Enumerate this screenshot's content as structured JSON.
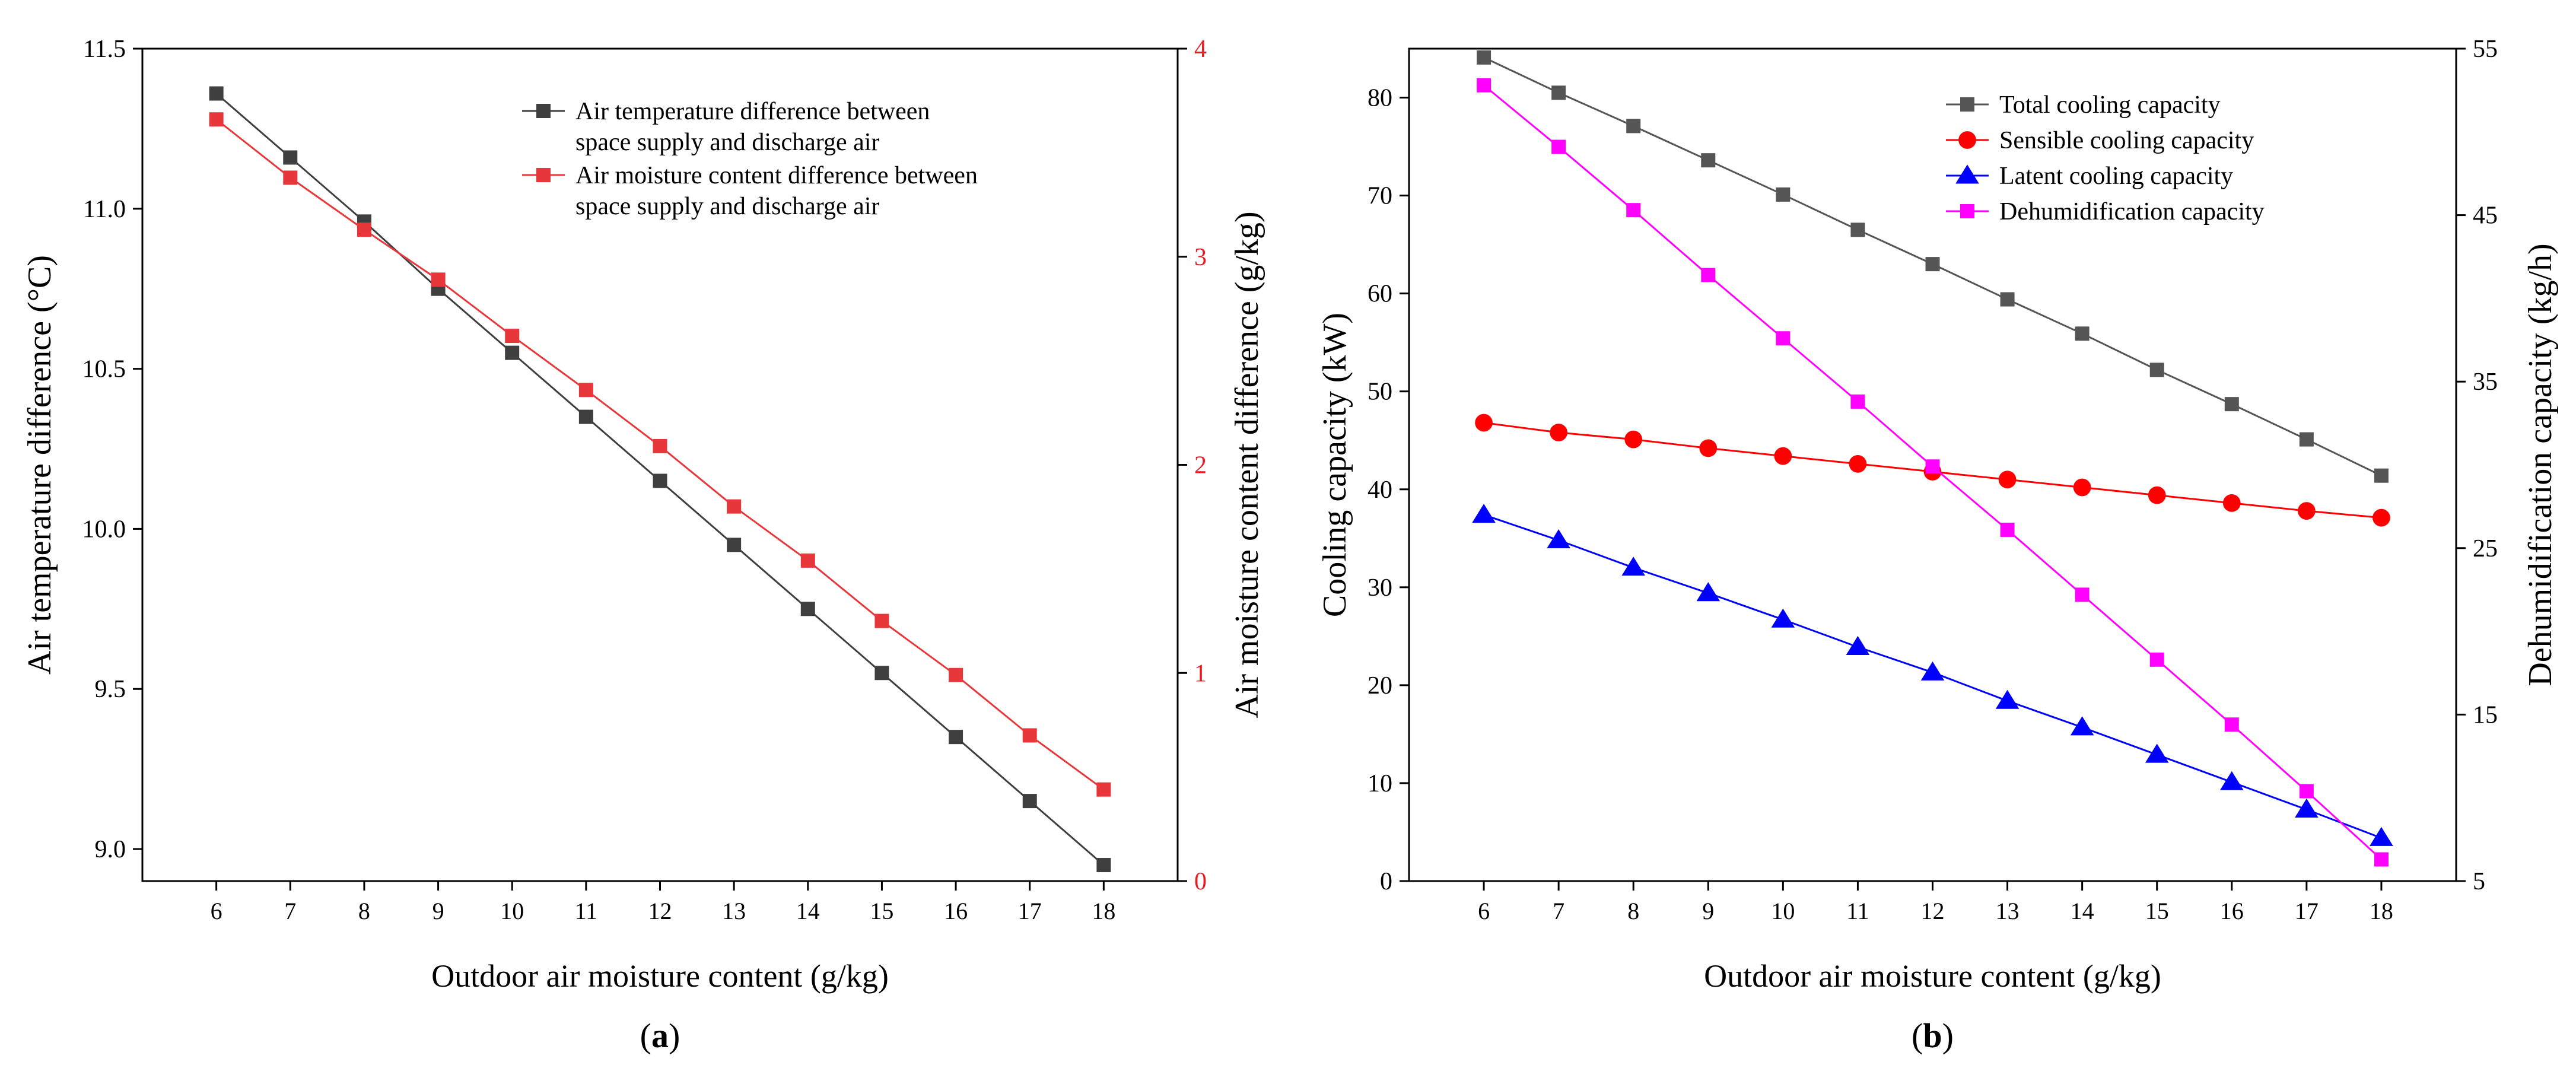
{
  "chart_data": [
    {
      "panel_label": "(a)",
      "type": "line",
      "title": "",
      "xlabel": "Outdoor air moisture content (g/kg)",
      "ylabel_left": "Air temperature difference (°C)",
      "ylabel_right": "Air moisture content difference (g/kg)",
      "x": [
        6,
        7,
        8,
        9,
        10,
        11,
        12,
        13,
        14,
        15,
        16,
        17,
        18
      ],
      "xlim": [
        5,
        19
      ],
      "xticks": [
        6,
        7,
        8,
        9,
        10,
        11,
        12,
        13,
        14,
        15,
        16,
        17,
        18
      ],
      "ylim_left": [
        8.9,
        11.5
      ],
      "yticks_left": [
        "9.0",
        "9.5",
        "10.0",
        "10.5",
        "11.0",
        "11.5"
      ],
      "ylim_right": [
        0,
        4
      ],
      "yticks_right": [
        "0",
        "1",
        "2",
        "3",
        "4"
      ],
      "legend_position": "top-right",
      "series": [
        {
          "name": "Air temperature difference between space supply and discharge air",
          "legend_lines": [
            "Air temperature difference between",
            "space supply and discharge air"
          ],
          "axis": "left",
          "marker": "square",
          "color": "#3f3f3f",
          "values": [
            11.36,
            11.16,
            10.96,
            10.75,
            10.55,
            10.35,
            10.15,
            9.95,
            9.75,
            9.55,
            9.35,
            9.15,
            8.95
          ]
        },
        {
          "name": "Air moisture content difference between space supply and discharge air",
          "legend_lines": [
            "Air moisture content difference between",
            "space supply and discharge air"
          ],
          "axis": "right",
          "marker": "square",
          "color": "#e8373a",
          "values": [
            3.66,
            3.38,
            3.13,
            2.89,
            2.62,
            2.36,
            2.09,
            1.8,
            1.54,
            1.25,
            0.99,
            0.7,
            0.44
          ]
        }
      ],
      "right_axis_color": "#e51c23"
    },
    {
      "panel_label": "(b)",
      "type": "line",
      "title": "",
      "xlabel": "Outdoor air moisture content (g/kg)",
      "ylabel_left": "Cooling capacity (kW)",
      "ylabel_right": "Dehumidification capacity (kg/h)",
      "x": [
        6,
        7,
        8,
        9,
        10,
        11,
        12,
        13,
        14,
        15,
        16,
        17,
        18
      ],
      "xlim": [
        5,
        19
      ],
      "xticks": [
        6,
        7,
        8,
        9,
        10,
        11,
        12,
        13,
        14,
        15,
        16,
        17,
        18
      ],
      "ylim_left": [
        0,
        85
      ],
      "yticks_left": [
        "0",
        "10",
        "20",
        "30",
        "40",
        "50",
        "60",
        "70",
        "80"
      ],
      "ylim_right": [
        5,
        55
      ],
      "yticks_right": [
        "5",
        "15",
        "25",
        "35",
        "45",
        "55"
      ],
      "legend_position": "top-right",
      "series": [
        {
          "name": "Total cooling capacity",
          "axis": "left",
          "marker": "square",
          "color": "#555555",
          "values": [
            84.1,
            80.5,
            77.1,
            73.6,
            70.1,
            66.5,
            63.0,
            59.4,
            55.9,
            52.2,
            48.7,
            45.1,
            41.4
          ]
        },
        {
          "name": "Sensible cooling capacity",
          "axis": "left",
          "marker": "circle",
          "color": "#ff0000",
          "values": [
            46.8,
            45.8,
            45.1,
            44.2,
            43.4,
            42.6,
            41.8,
            41.0,
            40.2,
            39.4,
            38.6,
            37.8,
            37.1
          ]
        },
        {
          "name": "Latent cooling capacity",
          "axis": "left",
          "marker": "triangle",
          "color": "#0000ff",
          "values": [
            37.4,
            34.8,
            32.0,
            29.4,
            26.7,
            23.9,
            21.3,
            18.4,
            15.7,
            12.9,
            10.1,
            7.3,
            4.4
          ]
        },
        {
          "name": "Dehumidification capacity",
          "axis": "right",
          "marker": "square",
          "color": "#ff00ff",
          "values": [
            52.8,
            49.1,
            45.3,
            41.4,
            37.6,
            33.8,
            29.9,
            26.1,
            22.2,
            18.3,
            14.4,
            10.4,
            6.3
          ]
        }
      ]
    }
  ]
}
